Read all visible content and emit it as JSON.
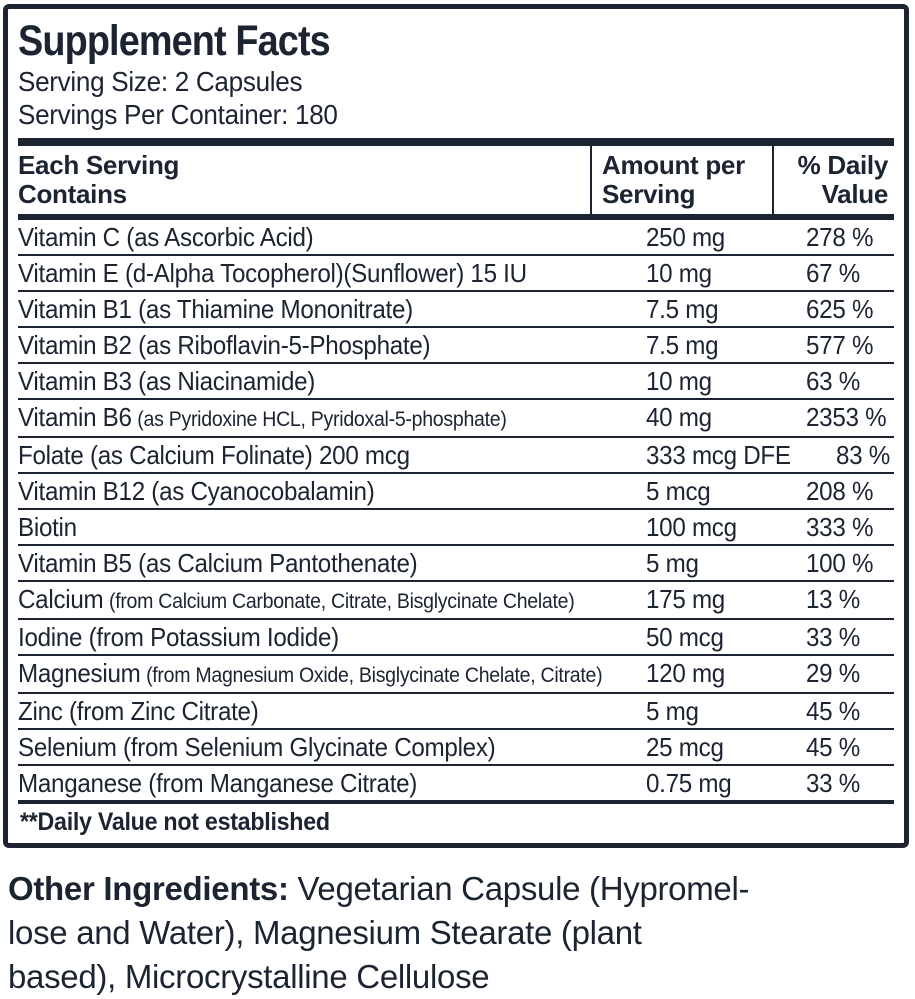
{
  "panel": {
    "title": "Supplement Facts",
    "serving_size": "Serving Size: 2 Capsules",
    "servings_per_container": "Servings Per Container: 180",
    "columns": {
      "each_serving": "Each Serving\nContains",
      "amount_per_serving": "Amount per\nServing",
      "percent_daily_value": "% Daily\nValue"
    },
    "rows": [
      {
        "name": "Vitamin C (as Ascorbic Acid)",
        "amount": "250 mg",
        "dv": "278 %"
      },
      {
        "name": "Vitamin E (d-Alpha Tocopherol)(Sunflower) 15 IU",
        "amount": "10 mg",
        "dv": "67 %"
      },
      {
        "name": "Vitamin B1 (as Thiamine Mononitrate)",
        "amount": "7.5 mg",
        "dv": "625 %"
      },
      {
        "name": "Vitamin B2 (as Riboflavin-5-Phosphate)",
        "amount": "7.5 mg",
        "dv": "577 %"
      },
      {
        "name": "Vitamin B3 (as Niacinamide)",
        "amount": "10 mg",
        "dv": "63 %"
      },
      {
        "name": "Vitamin B6",
        "detail": "(as Pyridoxine HCL, Pyridoxal-5-phosphate)",
        "amount": "40 mg",
        "dv": "2353 %"
      },
      {
        "name": "Folate (as Calcium Folinate) 200 mcg",
        "amount": "333 mcg DFE",
        "dv": "83 %"
      },
      {
        "name": "Vitamin B12 (as Cyanocobalamin)",
        "amount": "5 mcg",
        "dv": "208 %"
      },
      {
        "name": "Biotin",
        "amount": "100 mcg",
        "dv": "333 %"
      },
      {
        "name": "Vitamin B5 (as Calcium Pantothenate)",
        "amount": "5 mg",
        "dv": "100 %"
      },
      {
        "name": "Calcium",
        "detail": "(from Calcium Carbonate, Citrate, Bisglycinate Chelate)",
        "amount": "175 mg",
        "dv": "13 %"
      },
      {
        "name": "Iodine (from Potassium Iodide)",
        "amount": "50 mcg",
        "dv": "33 %"
      },
      {
        "name": "Magnesium",
        "detail": "(from Magnesium Oxide, Bisglycinate Chelate, Citrate)",
        "amount": "120 mg",
        "dv": "29 %"
      },
      {
        "name": "Zinc (from Zinc Citrate)",
        "amount": "5 mg",
        "dv": "45 %"
      },
      {
        "name": "Selenium (from Selenium Glycinate Complex)",
        "amount": "25 mcg",
        "dv": "45 %"
      },
      {
        "name": "Manganese (from Manganese Citrate)",
        "amount": "0.75 mg",
        "dv": "33 %"
      }
    ],
    "footnote": "**Daily Value not established"
  },
  "other_ingredients": {
    "label": "Other Ingredients:",
    "text": " Vegetarian Capsule (Hypromel-\nlose and Water), Magnesium Stearate (plant\nbased), Microcrystalline Cellulose"
  },
  "colors": {
    "ink": "#1c2431",
    "background": "#ffffff"
  }
}
